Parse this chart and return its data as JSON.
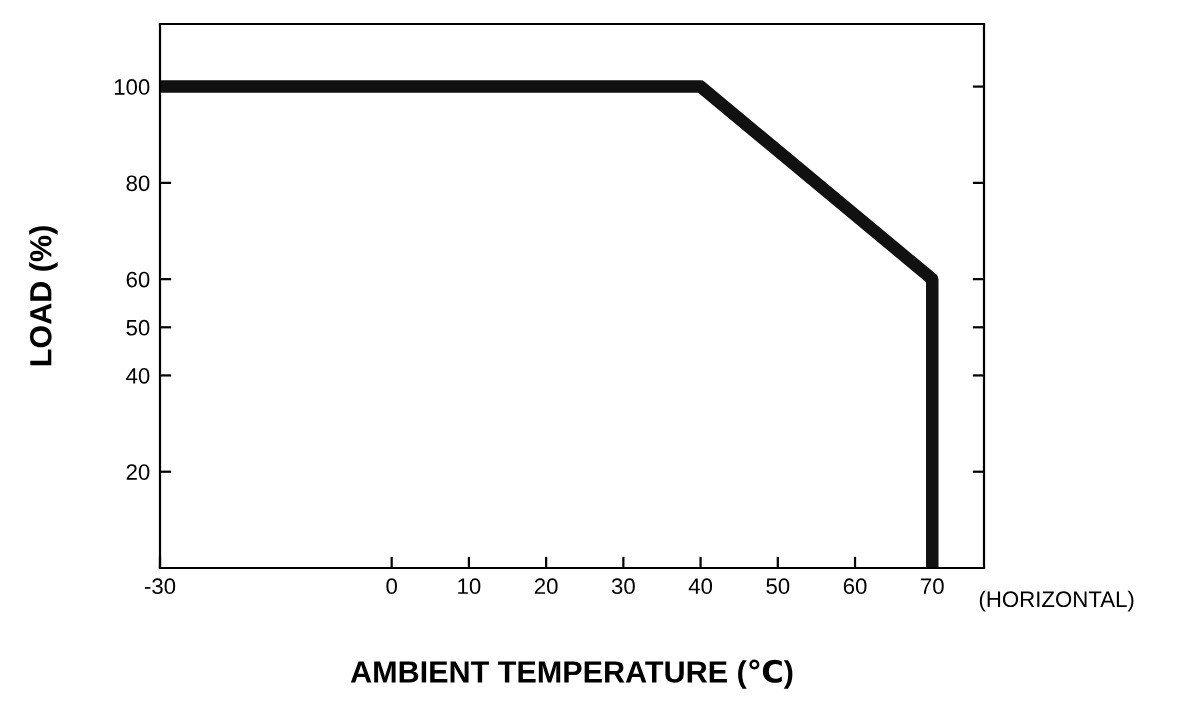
{
  "chart_data": {
    "type": "line",
    "xlabel": "AMBIENT TEMPERATURE (℃)",
    "ylabel": "LOAD (%)",
    "annotations": [
      "(HORIZONTAL)"
    ],
    "x": [
      -30,
      40,
      70,
      70
    ],
    "series": [
      {
        "color": "#111111",
        "values": [
          100,
          100,
          60,
          0
        ]
      }
    ],
    "xlim": [
      -30,
      76.7
    ],
    "xticks": [
      -30,
      0,
      10,
      20,
      30,
      40,
      50,
      60,
      70
    ],
    "ylim": [
      0,
      113
    ],
    "yticks": [
      20,
      40,
      50,
      60,
      80,
      100
    ],
    "grid": false,
    "legend": false,
    "marker": "none",
    "line_style": "solid"
  }
}
